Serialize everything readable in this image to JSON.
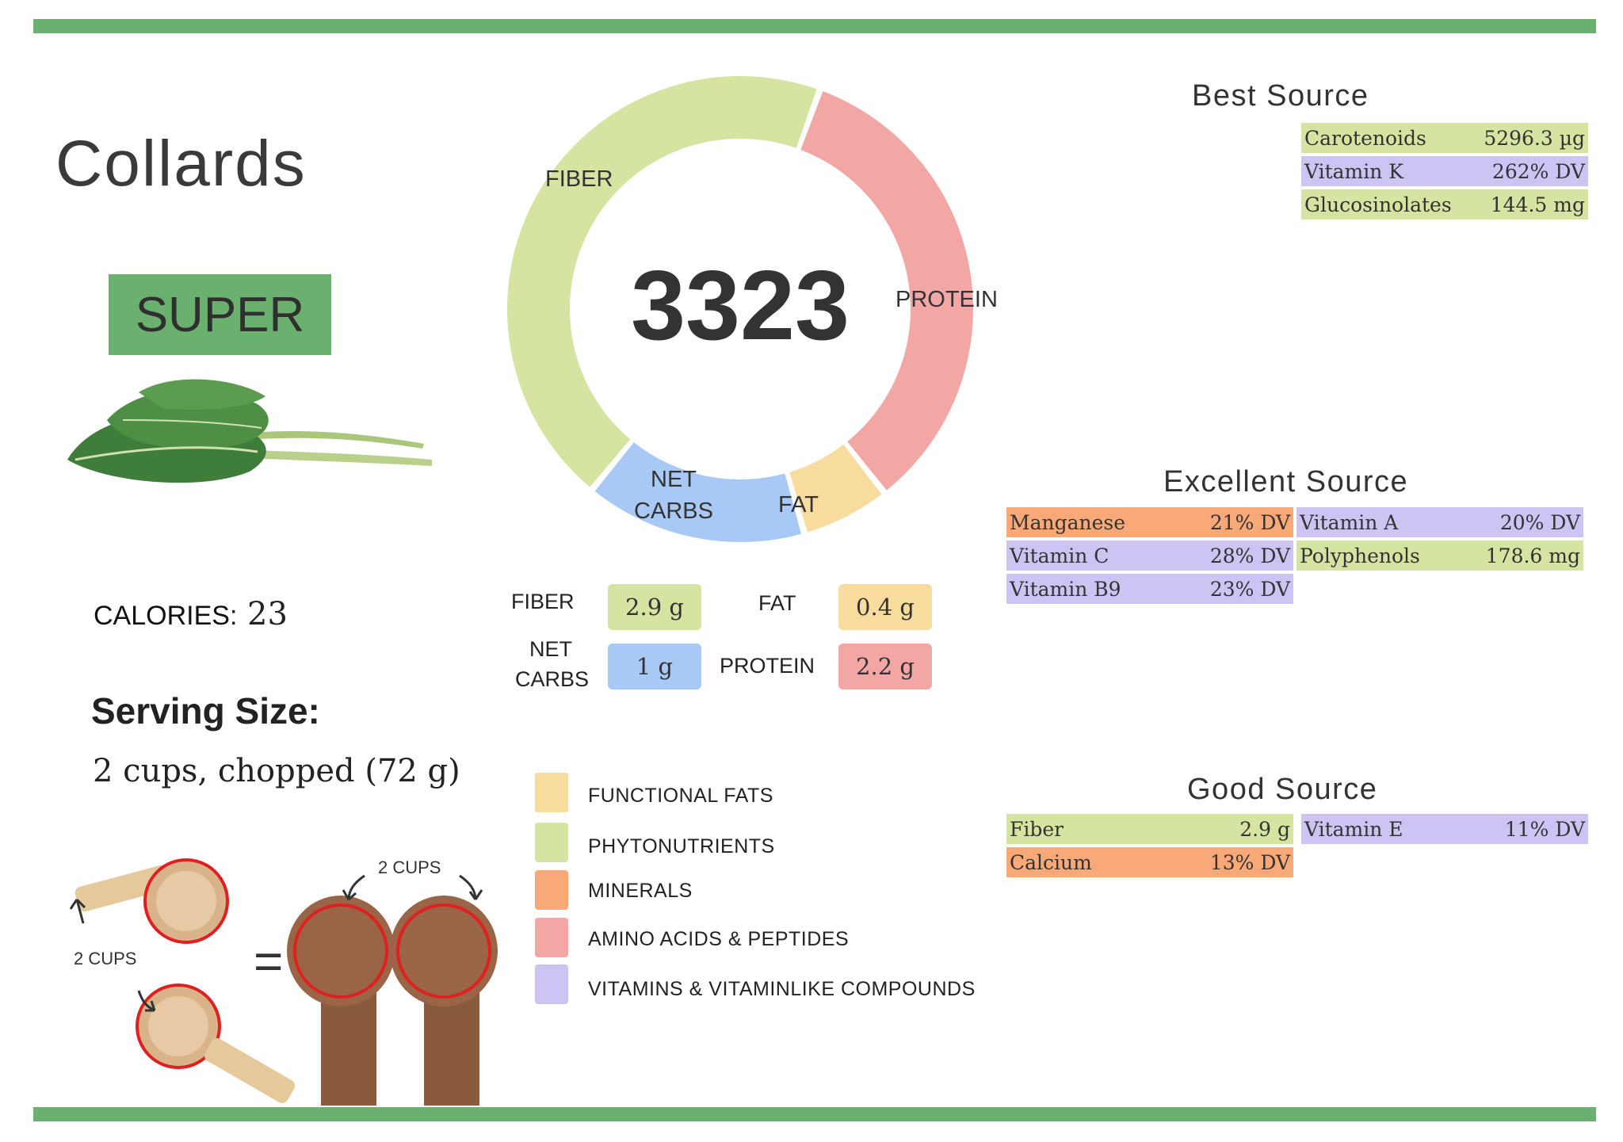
{
  "title": "Collards",
  "badge": "SUPER",
  "calories": {
    "label": "CALORIES:",
    "value": "23"
  },
  "serving": {
    "title": "Serving Size:",
    "value": "2 cups, chopped (72 g)"
  },
  "serving_illustration": {
    "cups_label_left": "2 CUPS",
    "cups_label_top": "2 CUPS",
    "equals": "="
  },
  "chart_data": {
    "type": "pie",
    "style": "donut",
    "center_value": "3323",
    "slices": [
      {
        "label": "FIBER",
        "value": 2.9,
        "color": "#d5e4a0"
      },
      {
        "label": "PROTEIN",
        "value": 2.2,
        "color": "#f3a7a5"
      },
      {
        "label": "FAT",
        "value": 0.4,
        "color": "#f8dc9e"
      },
      {
        "label": "NET CARBS",
        "value": 1,
        "color": "#a8c8f6"
      }
    ]
  },
  "segment_labels": {
    "fiber": "FIBER",
    "protein": "PROTEIN",
    "net_carbs_1": "NET",
    "net_carbs_2": "CARBS",
    "fat": "FAT"
  },
  "macros": {
    "fiber": {
      "label": "FIBER",
      "value": "2.9 g"
    },
    "fat": {
      "label": "FAT",
      "value": "0.4 g"
    },
    "net_carbs": {
      "label_1": "NET",
      "label_2": "CARBS",
      "value": "1 g"
    },
    "protein": {
      "label": "PROTEIN",
      "value": "2.2 g"
    }
  },
  "legend": [
    {
      "label": "FUNCTIONAL  FATS",
      "color": "#f8dc9e"
    },
    {
      "label": "PHYTONUTRIENTS",
      "color": "#d5e4a0"
    },
    {
      "label": "MINERALS",
      "color": "#f9a877"
    },
    {
      "label": "AMINO ACIDS & PEPTIDES",
      "color": "#f3a7a5"
    },
    {
      "label": "VITAMINS & VITAMINLIKE COMPOUNDS",
      "color": "#cec4f4"
    }
  ],
  "best_source": {
    "title": "Best Source",
    "items": [
      {
        "name": "Carotenoids",
        "value": "5296.3 µg"
      },
      {
        "name": "Vitamin K",
        "value": "262% DV"
      },
      {
        "name": "Glucosinolates",
        "value": "144.5 mg"
      }
    ]
  },
  "excellent_source": {
    "title": "Excellent Source",
    "items": [
      {
        "name": "Manganese",
        "value": "21% DV"
      },
      {
        "name": "Vitamin A",
        "value": "20% DV"
      },
      {
        "name": "Vitamin C",
        "value": "28% DV"
      },
      {
        "name": "Polyphenols",
        "value": "178.6 mg"
      },
      {
        "name": "Vitamin B9",
        "value": "23% DV"
      }
    ]
  },
  "good_source": {
    "title": "Good Source",
    "items": [
      {
        "name": "Fiber",
        "value": "2.9 g"
      },
      {
        "name": "Vitamin E",
        "value": "11% DV"
      },
      {
        "name": "Calcium",
        "value": "13% DV"
      }
    ]
  }
}
